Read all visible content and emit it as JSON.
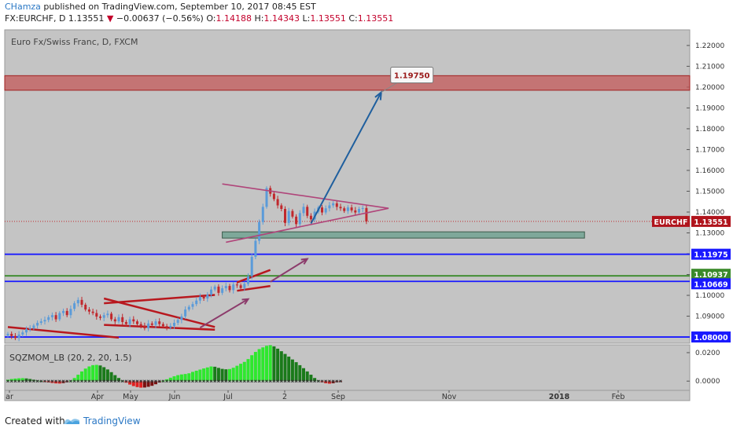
{
  "header": {
    "author": "CHamza",
    "published": " published on TradingView.com, September 10, 2017 08:45 EST",
    "symbol_line": "FX:EURCHF, D  1.13551",
    "change": "−0.00637 (−0.56%)",
    "o_label": "O:",
    "o_value": "1.14188",
    "h_label": "H:",
    "h_value": "1.14343",
    "l_label": "L:",
    "l_value": "1.13551",
    "c_label": "C:",
    "c_value": "1.13551"
  },
  "footer": {
    "created_with": "Created with",
    "brand": "TradingView"
  },
  "colors": {
    "plot_bg": "#c4c4c4",
    "up": "#5b9bd9",
    "down": "#c0282d",
    "trend": "#b8181e",
    "arrow_purple": "#8c3b6b",
    "target_arrow": "#1f5f9e",
    "blue_level": "#1a1aff",
    "green_level": "#3a8a2a",
    "target_zone": "#c45a5a",
    "support_zone": "#7ea89a",
    "mom_pos_strong": "#2ee82e",
    "mom_pos_weak": "#1a7a1a",
    "mom_neg_strong": "#e02020",
    "mom_neg_weak": "#7a1010"
  },
  "chart_data": [
    {
      "type": "candlestick",
      "title": "Euro Fx/Swiss Franc, D, FXCM",
      "ylim": [
        1.077,
        1.2275
      ],
      "yticks": [
        "1.22000",
        "1.21000",
        "1.20000",
        "1.19000",
        "1.18000",
        "1.17000",
        "1.16000",
        "1.15000",
        "1.14000",
        "1.13000",
        "1.12000",
        "1.11000",
        "1.10000",
        "1.09000",
        "1.08000"
      ],
      "xticks": [
        "ar",
        "Apr",
        "May",
        "Jun",
        "Jul",
        "2",
        "Sep",
        "Nov",
        "2018",
        "Feb"
      ],
      "price_labels": [
        {
          "name": "EURCHF",
          "value": "1.13551"
        },
        {
          "value": "1.11975"
        },
        {
          "value": "1.10937"
        },
        {
          "value": "1.10669"
        },
        {
          "value": "1.08000"
        }
      ],
      "horizontal_levels": [
        1.11975,
        1.10937,
        1.10669,
        1.08
      ],
      "target_zone": [
        1.1985,
        1.2055
      ],
      "support_zone": [
        1.1275,
        1.1305
      ],
      "target_label": "1.19750",
      "closes": [
        1.0815,
        1.0805,
        1.0795,
        1.0812,
        1.0822,
        1.0838,
        1.0842,
        1.0855,
        1.0868,
        1.0875,
        1.0882,
        1.0895,
        1.0905,
        1.0885,
        1.0915,
        1.0925,
        1.0905,
        1.0935,
        1.0962,
        1.0978,
        1.0955,
        1.0932,
        1.0922,
        1.0915,
        1.0898,
        1.0892,
        1.0905,
        1.0912,
        1.0885,
        1.0875,
        1.0895,
        1.0872,
        1.0862,
        1.0885,
        1.0875,
        1.0862,
        1.0855,
        1.0842,
        1.0865,
        1.0858,
        1.0875,
        1.0862,
        1.0852,
        1.0846,
        1.0853,
        1.0868,
        1.0882,
        1.0899,
        1.0932,
        1.0945,
        1.0958,
        1.0975,
        1.0993,
        1.0985,
        1.1003,
        1.1028,
        1.1042,
        1.1012,
        1.1034,
        1.1045,
        1.1025,
        1.1052,
        1.1048,
        1.1035,
        1.1055,
        1.1092,
        1.1185,
        1.1262,
        1.1352,
        1.1425,
        1.1515,
        1.1488,
        1.1462,
        1.1432,
        1.1415,
        1.1348,
        1.1405,
        1.1378,
        1.1342,
        1.1395,
        1.1425,
        1.1382,
        1.1365,
        1.1402,
        1.1422,
        1.1398,
        1.1418,
        1.1432,
        1.1442,
        1.1425,
        1.1418,
        1.1405,
        1.1422,
        1.1408,
        1.1398,
        1.1415,
        1.1419,
        1.1355
      ],
      "trend_lines": [
        {
          "from": [
            0,
            1.0848
          ],
          "to": [
            30,
            1.0797
          ]
        },
        {
          "from": [
            26,
            1.0962
          ],
          "to": [
            56,
            1.1002
          ]
        },
        {
          "from": [
            26,
            1.0985
          ],
          "to": [
            56,
            1.0848
          ]
        },
        {
          "from": [
            26,
            1.0858
          ],
          "to": [
            56,
            1.0835
          ]
        },
        {
          "from": [
            62,
            1.1062
          ],
          "to": [
            71,
            1.1122
          ]
        },
        {
          "from": [
            62,
            1.1022
          ],
          "to": [
            71,
            1.1045
          ]
        }
      ],
      "triangle": {
        "top_from": [
          58,
          1.1535
        ],
        "top_to": [
          103,
          1.1418
        ],
        "bottom_from": [
          59,
          1.1255
        ],
        "bottom_to": [
          103,
          1.1418
        ]
      },
      "target_arrow": {
        "from": [
          82,
          1.1345
        ],
        "to": [
          101,
          1.1975
        ]
      }
    },
    {
      "type": "bar",
      "title": "SQZMOM_LB (20, 2, 20, 1.5)",
      "ylim": [
        -0.0065,
        0.0255
      ],
      "yticks": [
        "0.0200",
        "0.0000"
      ],
      "values": [
        0.001,
        0.0015,
        0.0018,
        0.002,
        0.0021,
        0.0019,
        0.0015,
        0.001,
        0.0005,
        0.0001,
        -0.0004,
        -0.0009,
        -0.0013,
        -0.0016,
        -0.0017,
        -0.0014,
        -0.0008,
        0.0004,
        0.0022,
        0.0045,
        0.0068,
        0.0088,
        0.0103,
        0.0112,
        0.0114,
        0.011,
        0.0098,
        0.0082,
        0.0063,
        0.0042,
        0.0022,
        0.0004,
        -0.0011,
        -0.0024,
        -0.0035,
        -0.0042,
        -0.0046,
        -0.0045,
        -0.004,
        -0.0033,
        -0.0022,
        -0.001,
        0.0003,
        0.0013,
        0.0024,
        0.0034,
        0.0042,
        0.0047,
        0.005,
        0.0055,
        0.0065,
        0.0073,
        0.0081,
        0.0089,
        0.0096,
        0.0103,
        0.0101,
        0.0093,
        0.0086,
        0.0083,
        0.0085,
        0.0094,
        0.0108,
        0.0122,
        0.0135,
        0.0155,
        0.0182,
        0.0205,
        0.0225,
        0.0237,
        0.0248,
        0.0252,
        0.0244,
        0.0228,
        0.021,
        0.0191,
        0.0172,
        0.0152,
        0.0133,
        0.0112,
        0.0091,
        0.0068,
        0.0045,
        0.0022,
        0.0005,
        -0.0008,
        -0.0015,
        -0.0018,
        -0.0015,
        -0.0008,
        -0.0002
      ]
    }
  ]
}
